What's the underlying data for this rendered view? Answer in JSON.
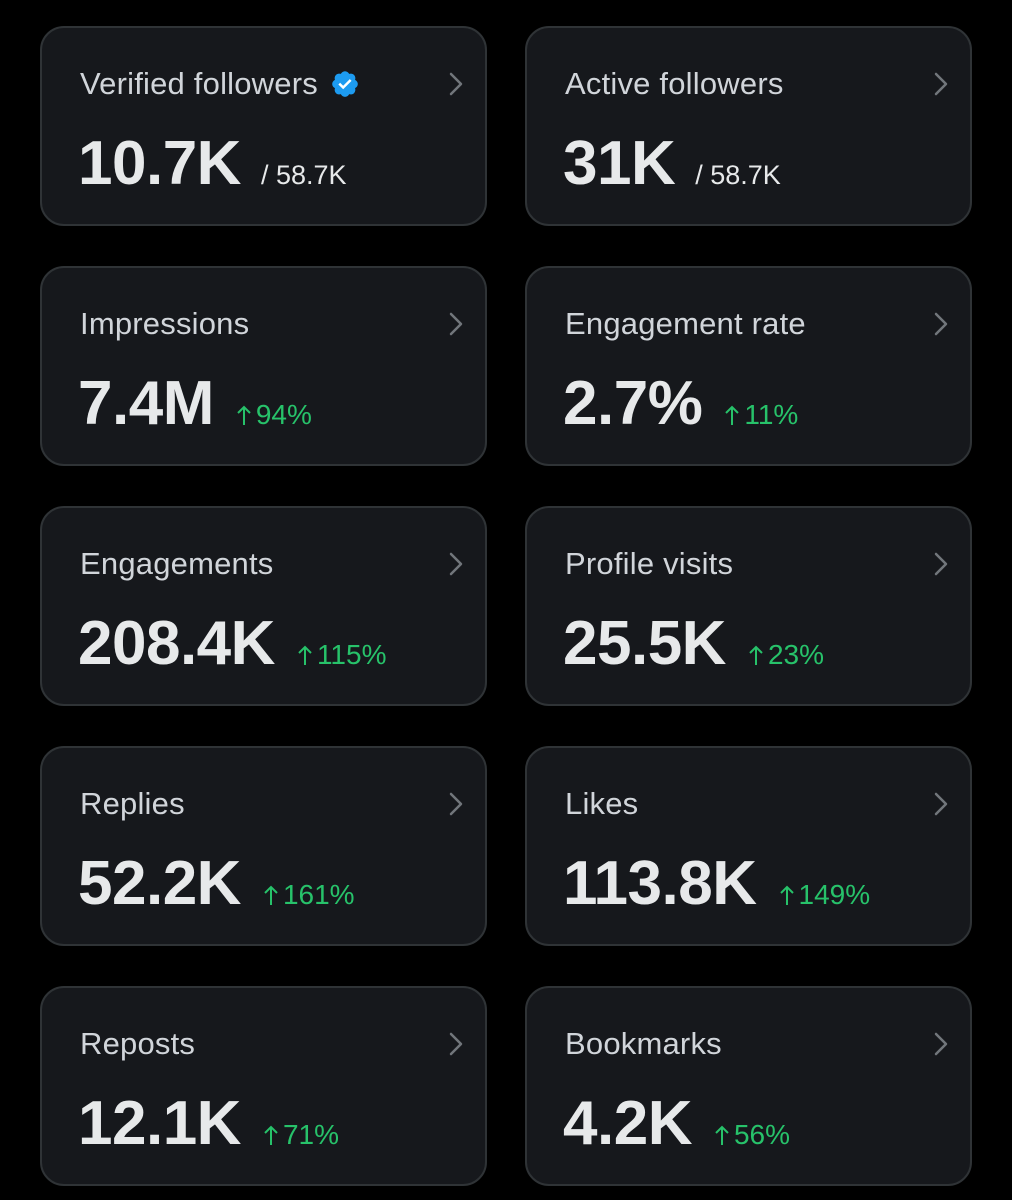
{
  "colors": {
    "background": "#000000",
    "card_background": "#16181c",
    "card_border": "#2f3336",
    "title_text": "#d1d5da",
    "value_text": "#e7e9ea",
    "increase_green": "#27c26a",
    "verified_blue": "#1d9bf0"
  },
  "cards": [
    {
      "title": "Verified followers",
      "value": "10.7K",
      "denominator": "/ 58.7K",
      "icon": "verified-badge-icon"
    },
    {
      "title": "Active followers",
      "value": "31K",
      "denominator": "/ 58.7K"
    },
    {
      "title": "Impressions",
      "value": "7.4M",
      "change": "94%",
      "change_direction": "up"
    },
    {
      "title": "Engagement rate",
      "value": "2.7%",
      "change": "11%",
      "change_direction": "up"
    },
    {
      "title": "Engagements",
      "value": "208.4K",
      "change": "115%",
      "change_direction": "up"
    },
    {
      "title": "Profile visits",
      "value": "25.5K",
      "change": "23%",
      "change_direction": "up"
    },
    {
      "title": "Replies",
      "value": "52.2K",
      "change": "161%",
      "change_direction": "up"
    },
    {
      "title": "Likes",
      "value": "113.8K",
      "change": "149%",
      "change_direction": "up"
    },
    {
      "title": "Reposts",
      "value": "12.1K",
      "change": "71%",
      "change_direction": "up"
    },
    {
      "title": "Bookmarks",
      "value": "4.2K",
      "change": "56%",
      "change_direction": "up"
    }
  ]
}
